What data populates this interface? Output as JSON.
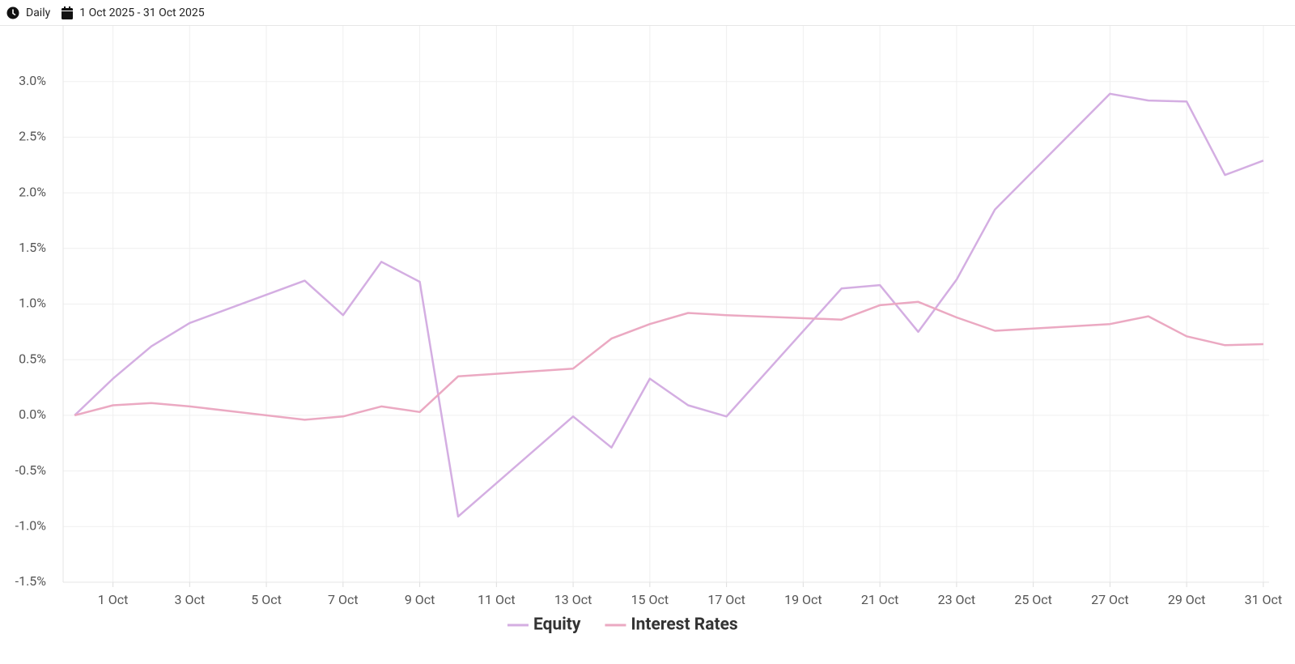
{
  "header": {
    "interval": "Daily",
    "range": "1 Oct 2025 - 31 Oct 2025"
  },
  "chart_data": {
    "type": "line",
    "x": [
      0,
      1,
      2,
      3,
      6,
      7,
      8,
      9,
      10,
      13,
      14,
      15,
      16,
      17,
      20,
      21,
      22,
      23,
      24,
      27,
      28,
      29,
      30,
      31
    ],
    "xlim": [
      -0.3,
      31.15
    ],
    "xticks": [
      {
        "value": 1,
        "label": "1 Oct"
      },
      {
        "value": 3,
        "label": "3 Oct"
      },
      {
        "value": 5,
        "label": "5 Oct"
      },
      {
        "value": 7,
        "label": "7 Oct"
      },
      {
        "value": 9,
        "label": "9 Oct"
      },
      {
        "value": 11,
        "label": "11 Oct"
      },
      {
        "value": 13,
        "label": "13 Oct"
      },
      {
        "value": 15,
        "label": "15 Oct"
      },
      {
        "value": 17,
        "label": "17 Oct"
      },
      {
        "value": 19,
        "label": "19 Oct"
      },
      {
        "value": 21,
        "label": "21 Oct"
      },
      {
        "value": 23,
        "label": "23 Oct"
      },
      {
        "value": 25,
        "label": "25 Oct"
      },
      {
        "value": 27,
        "label": "27 Oct"
      },
      {
        "value": 29,
        "label": "29 Oct"
      },
      {
        "value": 31,
        "label": "31 Oct"
      }
    ],
    "ylim": [
      -1.5,
      3.5
    ],
    "yticks": [
      {
        "value": -1.5,
        "label": "-1.5%"
      },
      {
        "value": -1.0,
        "label": "-1.0%"
      },
      {
        "value": -0.5,
        "label": "-0.5%"
      },
      {
        "value": 0,
        "label": "0.0%"
      },
      {
        "value": 0.5,
        "label": "0.5%"
      },
      {
        "value": 1.0,
        "label": "1.0%"
      },
      {
        "value": 1.5,
        "label": "1.5%"
      },
      {
        "value": 2.0,
        "label": "2.0%"
      },
      {
        "value": 2.5,
        "label": "2.5%"
      },
      {
        "value": 3.0,
        "label": "3.0%"
      }
    ],
    "grid": true,
    "legend": "bottom",
    "series": [
      {
        "name": "Equity",
        "color": "#d4aee2",
        "values": [
          0,
          0.33,
          0.62,
          0.83,
          1.21,
          0.9,
          1.38,
          1.2,
          -0.91,
          -0.01,
          -0.29,
          0.33,
          0.09,
          -0.01,
          1.14,
          1.17,
          0.75,
          1.22,
          1.85,
          2.89,
          2.83,
          2.82,
          2.16,
          2.29
        ]
      },
      {
        "name": "Interest Rates",
        "color": "#eba9c2",
        "values": [
          0,
          0.09,
          0.11,
          0.08,
          -0.04,
          -0.01,
          0.08,
          0.03,
          0.35,
          0.42,
          0.69,
          0.82,
          0.92,
          0.9,
          0.86,
          0.99,
          1.02,
          0.88,
          0.76,
          0.82,
          0.89,
          0.71,
          0.63,
          0.64
        ]
      }
    ]
  }
}
